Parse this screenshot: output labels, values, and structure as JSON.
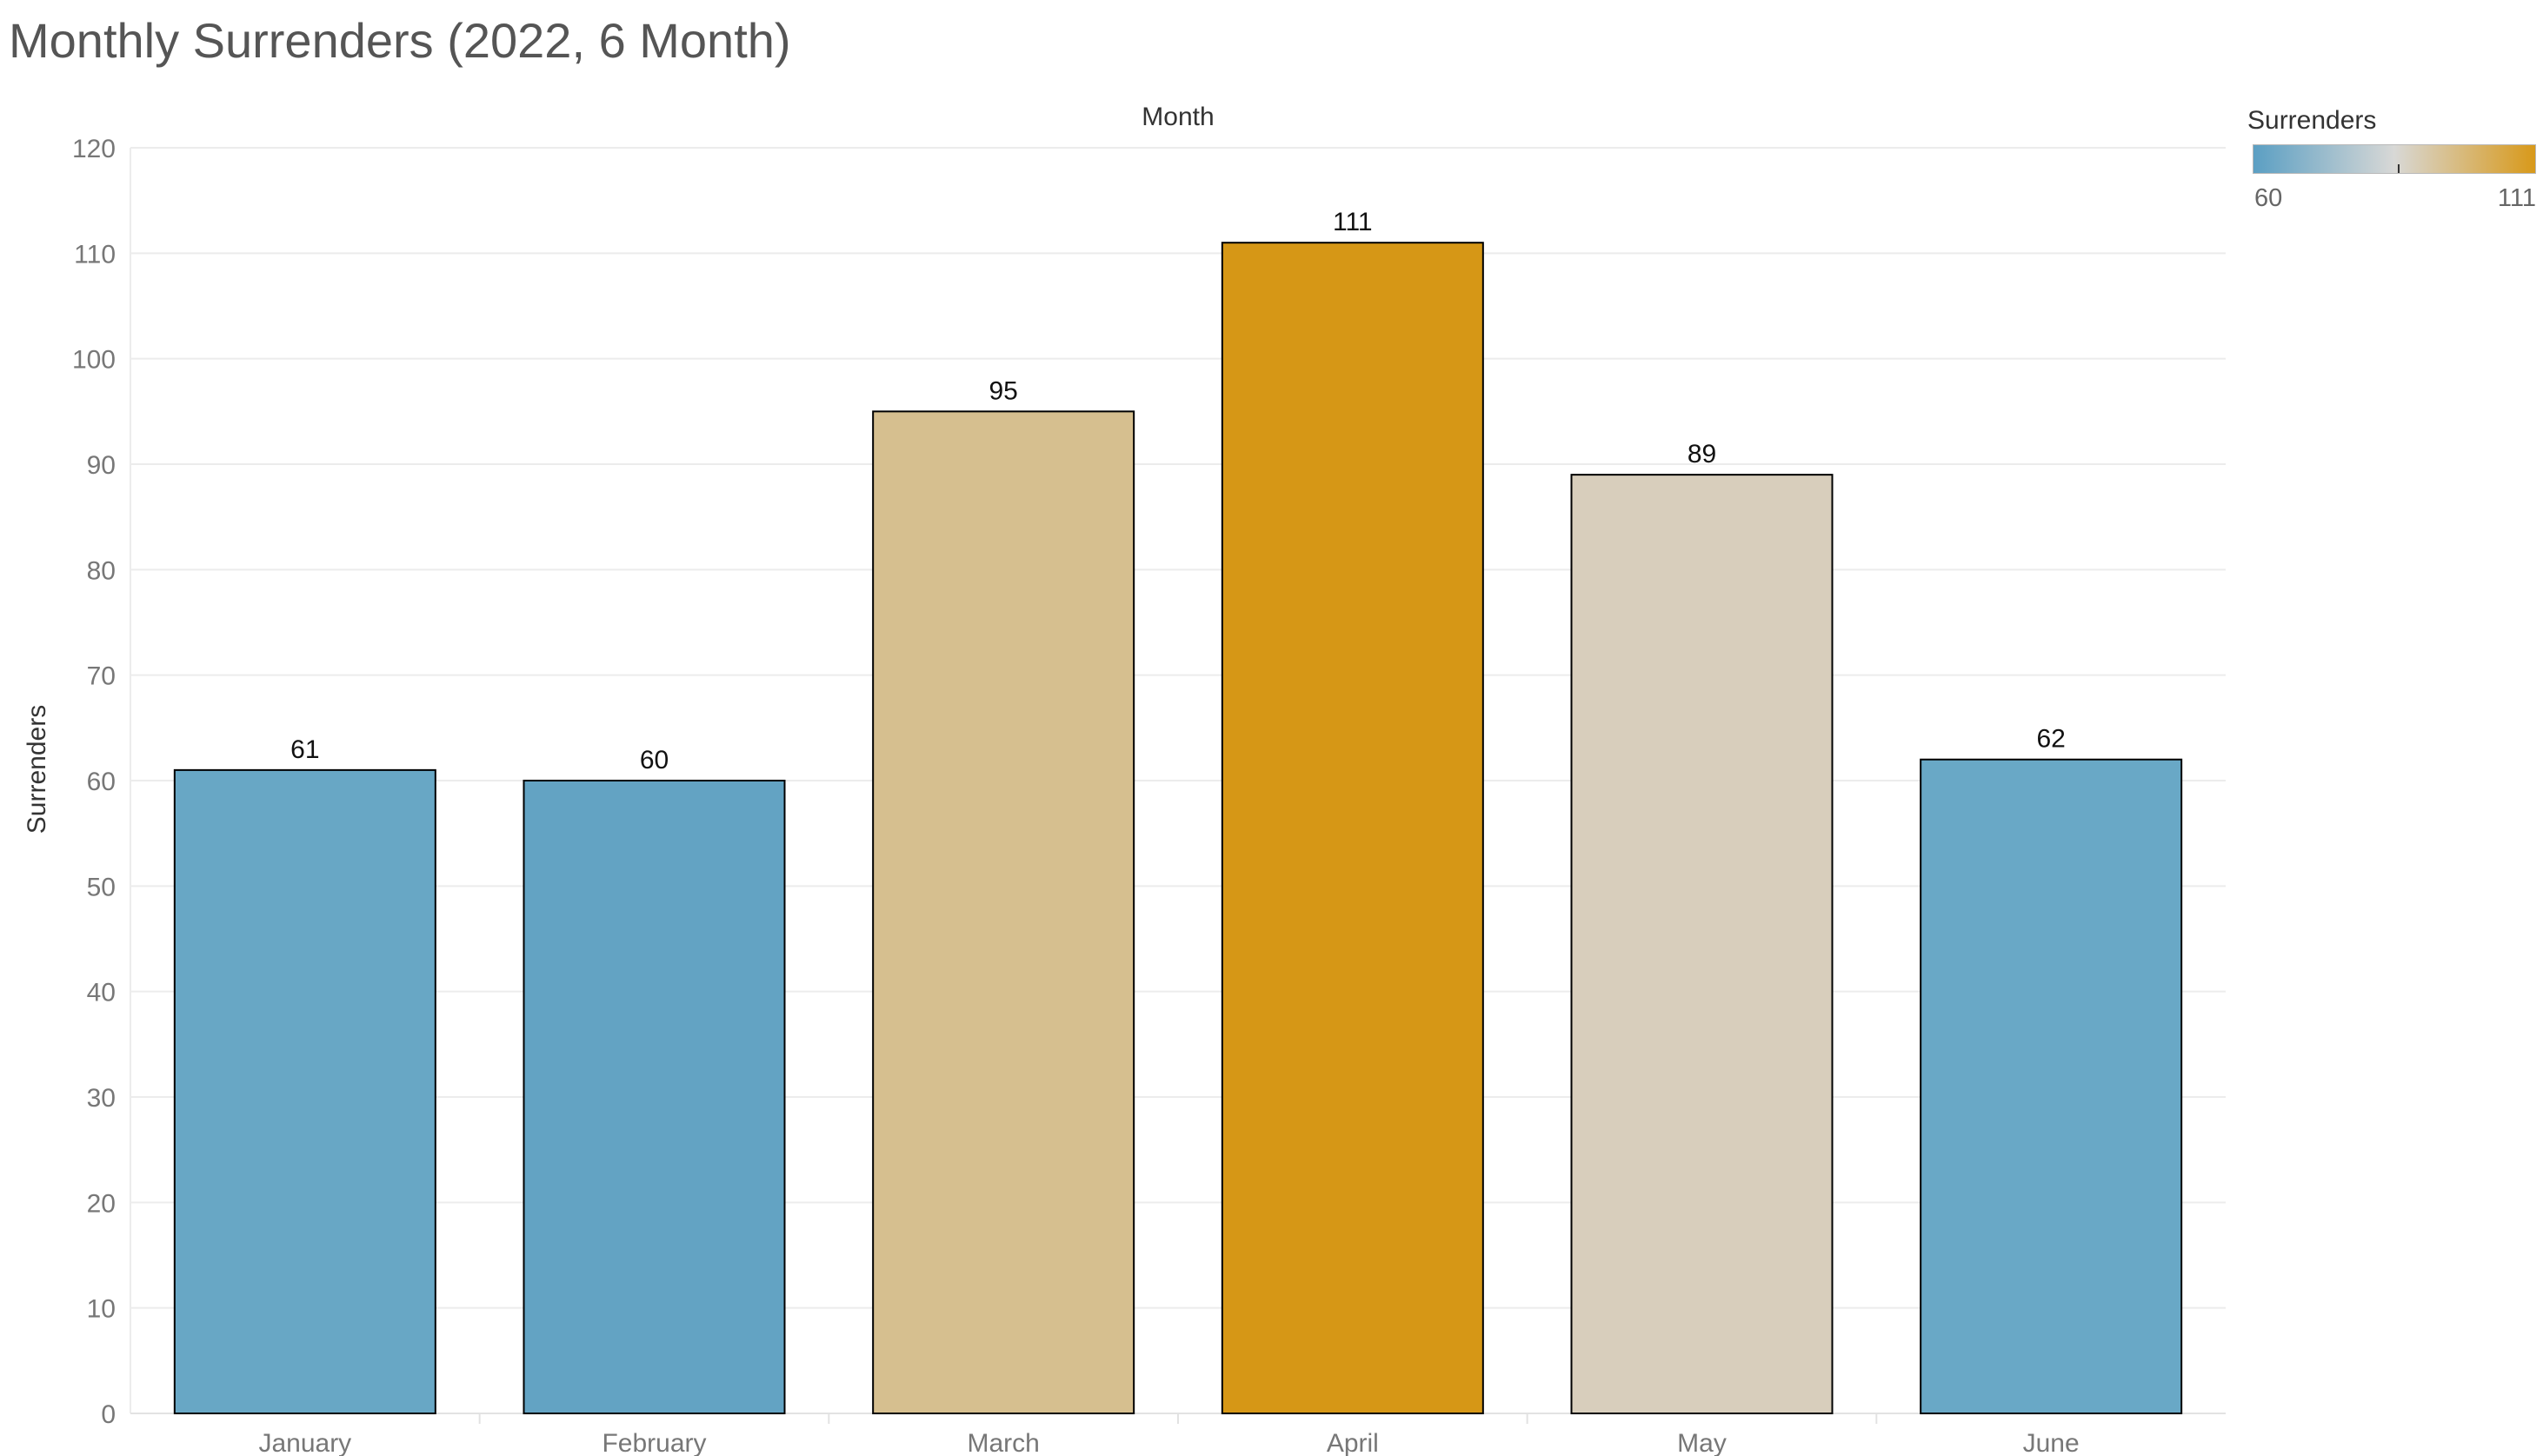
{
  "title": "Monthly Surrenders (2022, 6 Month)",
  "colors": {
    "low": "#5b9fc3",
    "mid": "#d8d8d6",
    "high": "#d8991a",
    "grid": "#ececec",
    "axis_text": "#777777",
    "bar_outline": "#000000"
  },
  "legend": {
    "title": "Surrenders",
    "min_label": "60",
    "max_label": "111"
  },
  "chart_data": {
    "type": "bar",
    "title": "Monthly Surrenders (2022, 6 Month)",
    "xlabel": "Month",
    "ylabel": "Surrenders",
    "categories": [
      "January",
      "February",
      "March",
      "April",
      "May",
      "June"
    ],
    "values": [
      61,
      60,
      95,
      111,
      89,
      62
    ],
    "bar_colors": [
      "#68a7c5",
      "#63a3c3",
      "#d6bf8f",
      "#d69716",
      "#d8cebc",
      "#69a8c6"
    ],
    "ylim": [
      0,
      120
    ],
    "yticks": [
      0,
      10,
      20,
      30,
      40,
      50,
      60,
      70,
      80,
      90,
      100,
      110,
      120
    ],
    "grid": true,
    "data_labels": true,
    "legend_placement": "top-right"
  }
}
